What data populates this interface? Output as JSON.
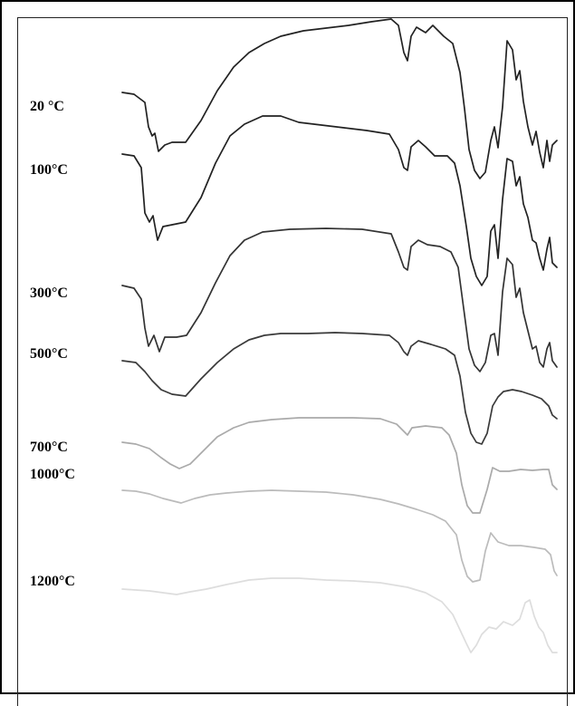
{
  "chart_data": {
    "type": "line",
    "title": "",
    "xlabel": "",
    "ylabel": "",
    "grid": false,
    "series": [
      {
        "name": "20 °C",
        "color": "#222222"
      },
      {
        "name": "100°C",
        "color": "#222222"
      },
      {
        "name": "300°C",
        "color": "#333333"
      },
      {
        "name": "500°C",
        "color": "#3a3a3a"
      },
      {
        "name": "700°C",
        "color": "#aaaaaa"
      },
      {
        "name": "1000°C",
        "color": "#bbbbbb"
      },
      {
        "name": "1200°C",
        "color": "#dddddd"
      }
    ]
  }
}
